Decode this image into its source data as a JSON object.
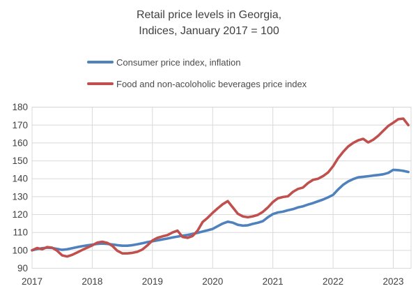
{
  "chart_data": {
    "type": "line",
    "title_lines": [
      "Retail price levels in Georgia,",
      "Indices, January 2017 = 100"
    ],
    "x_unit": "month",
    "x_range": [
      "2017-01",
      "2023-04"
    ],
    "x_tick_labels": [
      "2017",
      "2018",
      "2019",
      "2020",
      "2021",
      "2022",
      "2023"
    ],
    "y_ticks": [
      90,
      100,
      110,
      120,
      130,
      140,
      150,
      160,
      170,
      180
    ],
    "ylim": [
      90,
      180
    ],
    "grid": true,
    "legend_position": "top-left",
    "grid_color": "#d9d9d9",
    "series": [
      {
        "name": "Consumer price index, inflation",
        "color": "#4F81BD",
        "values": [
          100.0,
          100.7,
          101.2,
          101.5,
          101.3,
          100.8,
          100.3,
          100.6,
          101.2,
          101.8,
          102.3,
          102.8,
          103.2,
          103.6,
          103.8,
          103.6,
          103.3,
          102.9,
          102.6,
          102.6,
          102.9,
          103.4,
          104.0,
          104.6,
          105.1,
          105.6,
          106.1,
          106.6,
          107.2,
          107.7,
          108.2,
          108.6,
          109.2,
          109.8,
          110.5,
          111.2,
          112.0,
          113.5,
          115.0,
          116.0,
          115.5,
          114.3,
          113.8,
          114.0,
          114.8,
          115.4,
          116.3,
          118.5,
          120.3,
          121.2,
          121.6,
          122.4,
          123.0,
          124.0,
          124.6,
          125.6,
          126.4,
          127.4,
          128.4,
          129.6,
          131.0,
          134.0,
          136.6,
          138.5,
          139.8,
          140.8,
          141.1,
          141.4,
          141.8,
          142.1,
          142.5,
          143.3,
          145.0,
          144.8,
          144.4,
          143.8
        ]
      },
      {
        "name": "Food and non-acoloholic beverages price index",
        "color": "#C0504D",
        "values": [
          100.0,
          101.3,
          100.6,
          101.8,
          101.5,
          99.8,
          97.2,
          96.6,
          97.5,
          98.8,
          100.2,
          101.5,
          102.8,
          104.3,
          104.8,
          104.2,
          102.5,
          99.8,
          98.3,
          98.3,
          98.6,
          99.2,
          100.5,
          102.8,
          105.5,
          107.0,
          107.8,
          108.5,
          110.0,
          111.0,
          107.5,
          107.0,
          108.0,
          111.0,
          115.8,
          118.2,
          121.0,
          123.5,
          125.8,
          127.5,
          124.0,
          120.5,
          119.0,
          118.5,
          119.0,
          119.8,
          121.5,
          124.0,
          127.0,
          129.1,
          129.8,
          130.2,
          132.7,
          134.3,
          135.1,
          137.6,
          139.4,
          140.0,
          141.5,
          143.5,
          147.0,
          151.5,
          155.0,
          158.0,
          160.0,
          161.5,
          162.3,
          160.3,
          161.8,
          164.0,
          166.8,
          169.5,
          171.3,
          173.3,
          173.6,
          170.0
        ]
      }
    ]
  }
}
